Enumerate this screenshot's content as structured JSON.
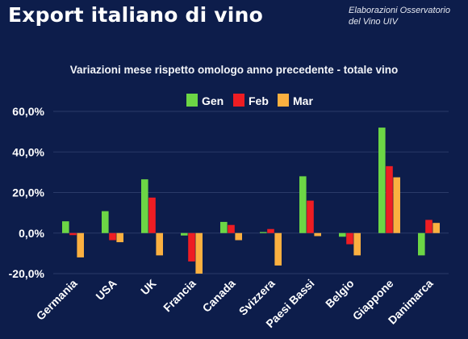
{
  "header": {
    "title": "Export italiano di vino",
    "source_line1": "Elaborazioni Osservatorio",
    "source_line2": "del Vino UIV"
  },
  "colors": {
    "background": "#0d1d4b",
    "Gen": "#6cd645",
    "Feb": "#ee1d23",
    "Mar": "#fbb040",
    "gridline": "#2a3a68"
  },
  "chart_data": {
    "type": "bar",
    "title": "Variazioni mese rispetto omologo anno precedente - totale vino",
    "categories": [
      "Germania",
      "USA",
      "UK",
      "Francia",
      "Canada",
      "Svizzera",
      "Paesi Bassi",
      "Belgio",
      "Giappone",
      "Danimarca"
    ],
    "series": [
      {
        "name": "Gen",
        "values": [
          5.8,
          10.8,
          26.5,
          -1.2,
          5.5,
          0.5,
          28.0,
          -1.8,
          52.0,
          -11.0
        ]
      },
      {
        "name": "Feb",
        "values": [
          -1.0,
          -3.5,
          17.5,
          -14.0,
          4.0,
          2.0,
          16.0,
          -5.5,
          33.0,
          6.5
        ]
      },
      {
        "name": "Mar",
        "values": [
          -12.0,
          -4.5,
          -11.0,
          -20.0,
          -3.5,
          -16.0,
          -1.5,
          -11.0,
          27.5,
          5.0
        ]
      }
    ],
    "ylim": [
      -20,
      60
    ],
    "yticks": [
      -20,
      0,
      20,
      40,
      60
    ],
    "ytick_labels": [
      "-20,0%",
      "0,0%",
      "20,0%",
      "40,0%",
      "60,0%"
    ],
    "legend_position": "top-center",
    "grid": true
  }
}
